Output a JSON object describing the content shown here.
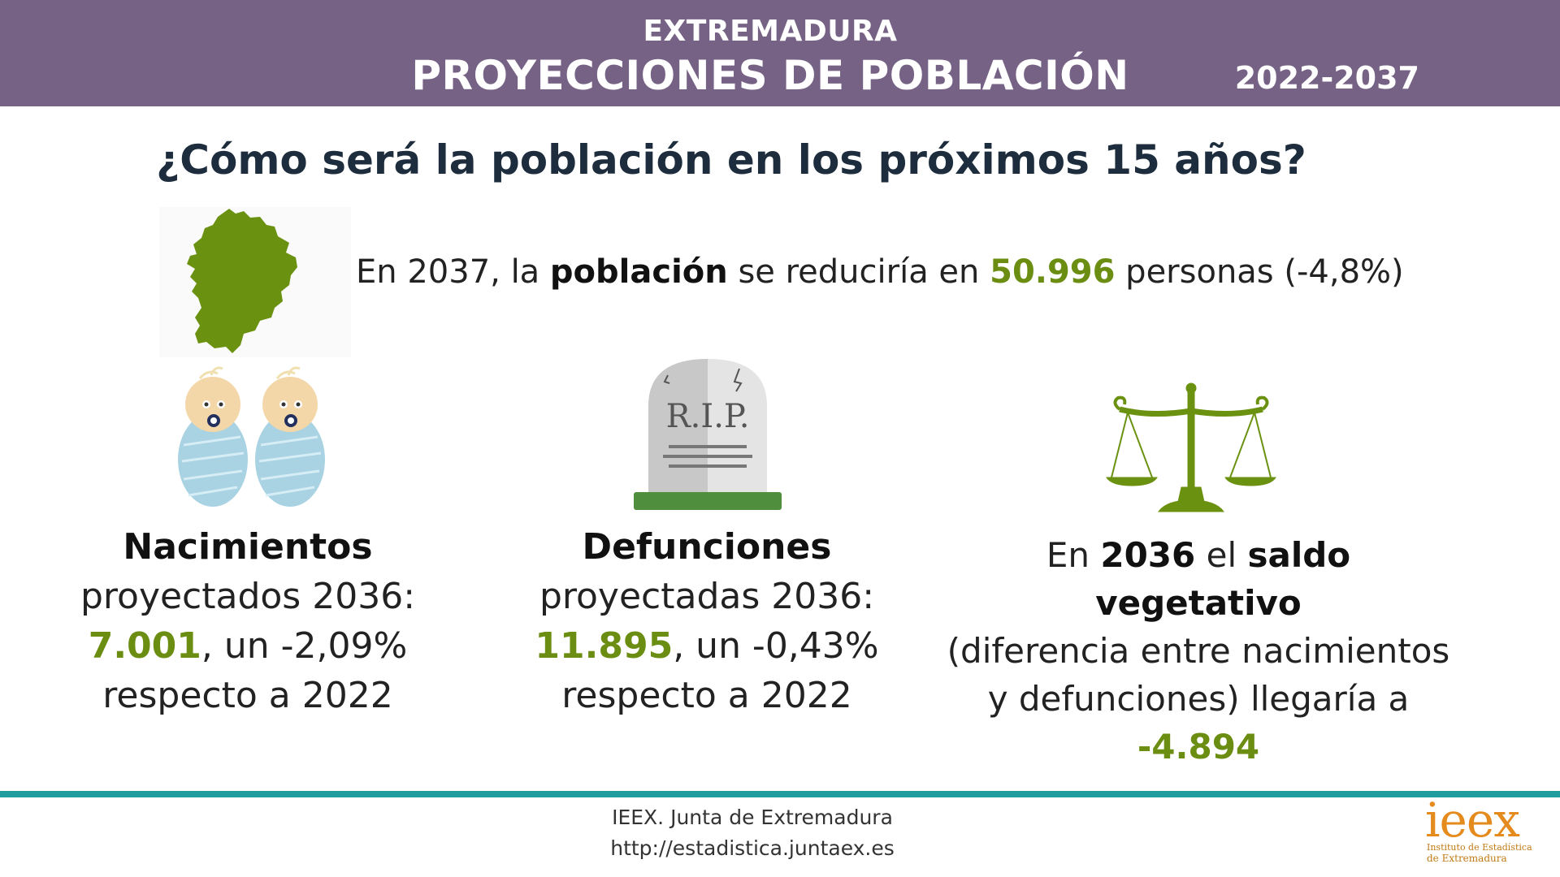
{
  "header": {
    "region": "EXTREMADURA",
    "title": "PROYECCIONES DE POBLACIÓN",
    "years": "2022-2037"
  },
  "question": "¿Cómo será la población en los próximos 15 años?",
  "summary": {
    "prefix": "En 2037, la ",
    "bold": "población",
    "middle": " se reduciría en ",
    "value": "50.996",
    "suffix": " personas (-4,8%)"
  },
  "births": {
    "title": "Nacimientos",
    "line2": "proyectados 2036:",
    "value": "7.001",
    "change": ", un -2,09%",
    "line4": "respecto a 2022"
  },
  "deaths": {
    "title": "Defunciones",
    "line2": "proyectadas 2036:",
    "value": "11.895",
    "change": ", un -0,43%",
    "line4": "respecto a 2022",
    "tombstone_text": "R.I.P."
  },
  "balance": {
    "pre1": "En ",
    "year": "2036",
    "pre2": " el ",
    "bold": "saldo vegetativo",
    "line2": "(diferencia entre nacimientos",
    "line3": "y defunciones) llegaría a",
    "value": "-4.894"
  },
  "footer": {
    "line1": "IEEX. Junta de Extremadura",
    "line2": "http://estadistica.juntaex.es"
  },
  "logo": {
    "word": "ieex",
    "sub1": "Instituto de Estadística",
    "sub2": "de Extremadura"
  },
  "colors": {
    "header_bg": "#766285",
    "accent_green": "#6a8d12",
    "footer_teal": "#1f9c9e",
    "logo_orange": "#e58a1c"
  },
  "icons": [
    "extremadura-map-icon",
    "babies-icon",
    "tombstone-icon",
    "scales-icon"
  ]
}
